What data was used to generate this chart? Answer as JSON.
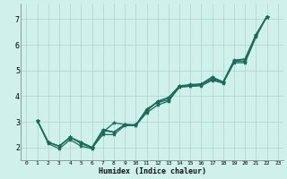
{
  "xlabel": "Humidex (Indice chaleur)",
  "ylabel": "",
  "bg_color": "#cff0eb",
  "grid_color": "#aad4cc",
  "line_color": "#1a6b5a",
  "xlim": [
    -0.5,
    23.5
  ],
  "ylim": [
    1.5,
    7.6
  ],
  "xticks": [
    0,
    1,
    2,
    3,
    4,
    5,
    6,
    7,
    8,
    9,
    10,
    11,
    12,
    13,
    14,
    15,
    16,
    17,
    18,
    19,
    20,
    21,
    22,
    23
  ],
  "yticks": [
    2,
    3,
    4,
    5,
    6,
    7
  ],
  "series": [
    [
      3.05,
      2.15,
      1.95,
      2.3,
      2.05,
      1.95,
      2.6,
      2.95,
      2.9,
      2.85,
      3.5,
      3.75,
      3.85,
      4.35,
      4.4,
      4.45,
      4.65,
      4.55,
      5.35,
      5.35,
      6.35,
      7.1
    ],
    [
      3.05,
      2.2,
      2.05,
      2.4,
      2.15,
      1.98,
      2.5,
      2.5,
      2.85,
      2.85,
      3.35,
      3.65,
      3.8,
      4.35,
      4.38,
      4.4,
      4.62,
      4.5,
      5.3,
      5.3,
      6.3,
      7.1
    ],
    [
      3.05,
      2.2,
      2.05,
      2.38,
      2.2,
      2.0,
      2.65,
      2.6,
      2.88,
      2.88,
      3.42,
      3.78,
      3.92,
      4.38,
      4.42,
      4.45,
      4.7,
      4.55,
      5.38,
      5.42,
      6.38,
      7.1
    ],
    [
      3.05,
      2.2,
      2.05,
      2.4,
      2.2,
      2.0,
      2.7,
      2.6,
      2.9,
      2.88,
      3.45,
      3.8,
      3.95,
      4.4,
      4.45,
      4.48,
      4.75,
      4.55,
      5.4,
      5.45,
      6.4,
      7.1
    ]
  ],
  "x_start": 1
}
